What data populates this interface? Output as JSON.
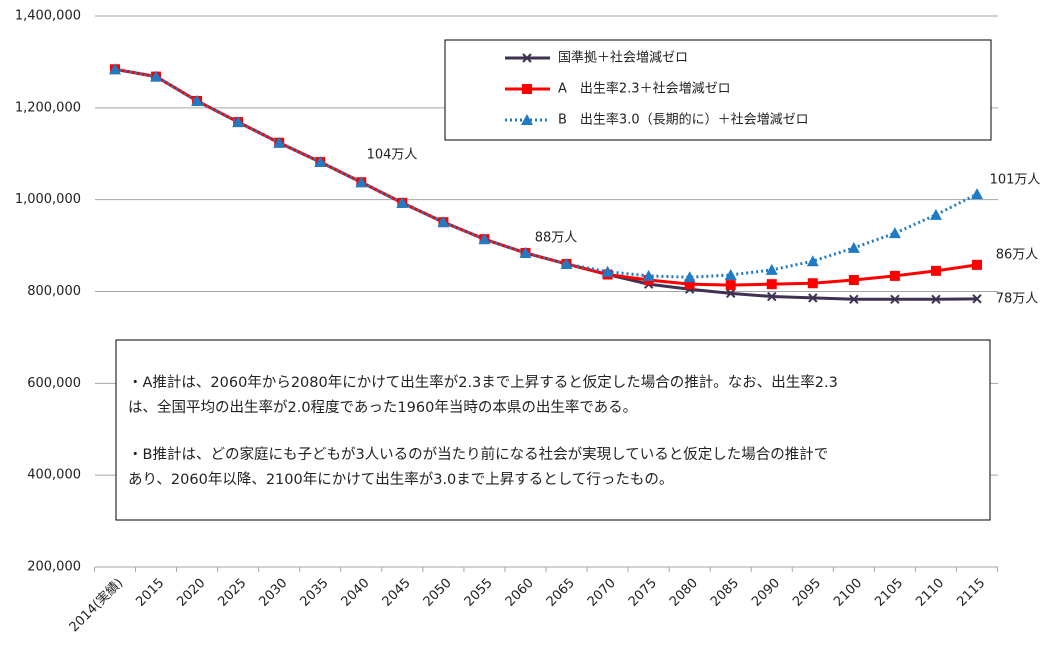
{
  "chart_data": {
    "type": "line",
    "categories": [
      "2014(実績)",
      "2015",
      "2020",
      "2025",
      "2030",
      "2035",
      "2040",
      "2045",
      "2050",
      "2055",
      "2060",
      "2065",
      "2070",
      "2075",
      "2080",
      "2085",
      "2090",
      "2095",
      "2100",
      "2105",
      "2110",
      "2115"
    ],
    "series": [
      {
        "name": "国準拠＋社会増減ゼロ",
        "color": "#3f3151",
        "marker": "x",
        "dash": false,
        "values": [
          1284000,
          1268000,
          1215000,
          1169000,
          1124000,
          1082000,
          1038000,
          993000,
          951000,
          914000,
          884000,
          860000,
          837000,
          816000,
          805000,
          796000,
          789000,
          786000,
          783000,
          783000,
          783000,
          784000
        ]
      },
      {
        "name": "A　出生率2.3＋社会増減ゼロ",
        "color": "#ff0000",
        "marker": "square",
        "dash": false,
        "values": [
          1284000,
          1268000,
          1215000,
          1169000,
          1124000,
          1082000,
          1038000,
          993000,
          951000,
          914000,
          884000,
          860000,
          837000,
          825000,
          816000,
          814000,
          816000,
          818000,
          825000,
          834000,
          845000,
          858000
        ]
      },
      {
        "name": "B　出生率3.0（長期的に）＋社会増減ゼロ",
        "color": "#1f7bc4",
        "marker": "triangle",
        "dash": true,
        "values": [
          1284000,
          1268000,
          1215000,
          1169000,
          1124000,
          1082000,
          1038000,
          993000,
          951000,
          914000,
          884000,
          860000,
          843000,
          834000,
          831000,
          836000,
          847000,
          866000,
          895000,
          927000,
          967000,
          1012000
        ]
      }
    ],
    "ylim": [
      200000,
      1400000
    ],
    "yticks": [
      {
        "value": 200000,
        "label": "200,000"
      },
      {
        "value": 400000,
        "label": "400,000"
      },
      {
        "value": 600000,
        "label": "600,000"
      },
      {
        "value": 800000,
        "label": "800,000"
      },
      {
        "value": 1000000,
        "label": "1,000,000"
      },
      {
        "value": 1200000,
        "label": "1,200,000"
      },
      {
        "value": 1400000,
        "label": "1,400,000"
      }
    ],
    "grid": true,
    "annotations": [
      "104万人",
      "88万人",
      "101万人",
      "86万人",
      "78万人"
    ],
    "note": [
      [
        "・A推計は、2060年から2080年にかけて出生率が2.3まで上昇すると仮定した場合の推計。なお、出生率2.3",
        "は、全国平均の出生率が2.0程度であった1960年当時の本県の出生率である。"
      ],
      [
        "・B推計は、どの家庭にも子どもが3人いるのが当たり前になる社会が実現していると仮定した場合の推計で",
        "あり、2060年以降、2100年にかけて出生率が3.0まで上昇するとして行ったもの。"
      ]
    ]
  }
}
